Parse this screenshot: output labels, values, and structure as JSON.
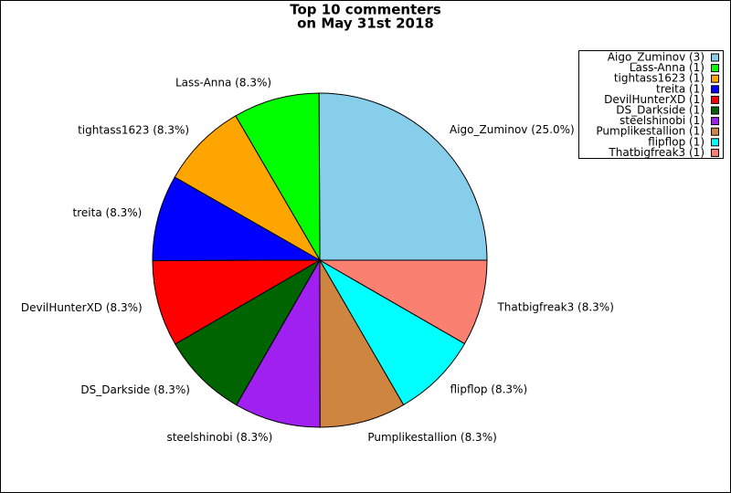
{
  "chart_data": {
    "type": "pie",
    "title_lines": [
      "Top 10 commenters",
      "on May 31st 2018"
    ],
    "values": [
      25.0,
      8.3,
      8.3,
      8.3,
      8.3,
      8.3,
      8.3,
      8.3,
      8.3,
      8.3
    ],
    "value_labels": [
      "Aigo_Zuminov (25.0%)",
      "Lass-Anna (8.3%)",
      "tightass1623 (8.3%)",
      "treita (8.3%)",
      "DevilHunterXD (8.3%)",
      "DS_Darkside (8.3%)",
      "steelshinobi (8.3%)",
      "Pumplikestallion (8.3%)",
      "flipflop (8.3%)",
      "Thatbigfreak3 (8.3%)"
    ],
    "legend_labels": [
      "Aigo_Zuminov (3)",
      "Lass-Anna (1)",
      "tightass1623 (1)",
      "treita (1)",
      "DevilHunterXD (1)",
      "DS_Darkside (1)",
      "steelshinobi (1)",
      "Pumplikestallion (1)",
      "flipflop (1)",
      "Thatbigfreak3 (1)"
    ],
    "colors": [
      "#87ceeb",
      "#00ff00",
      "#ffa500",
      "#0000ff",
      "#ff0000",
      "#006400",
      "#a020f0",
      "#cd853f",
      "#00ffff",
      "#fa8072"
    ],
    "legend": "upper right"
  }
}
